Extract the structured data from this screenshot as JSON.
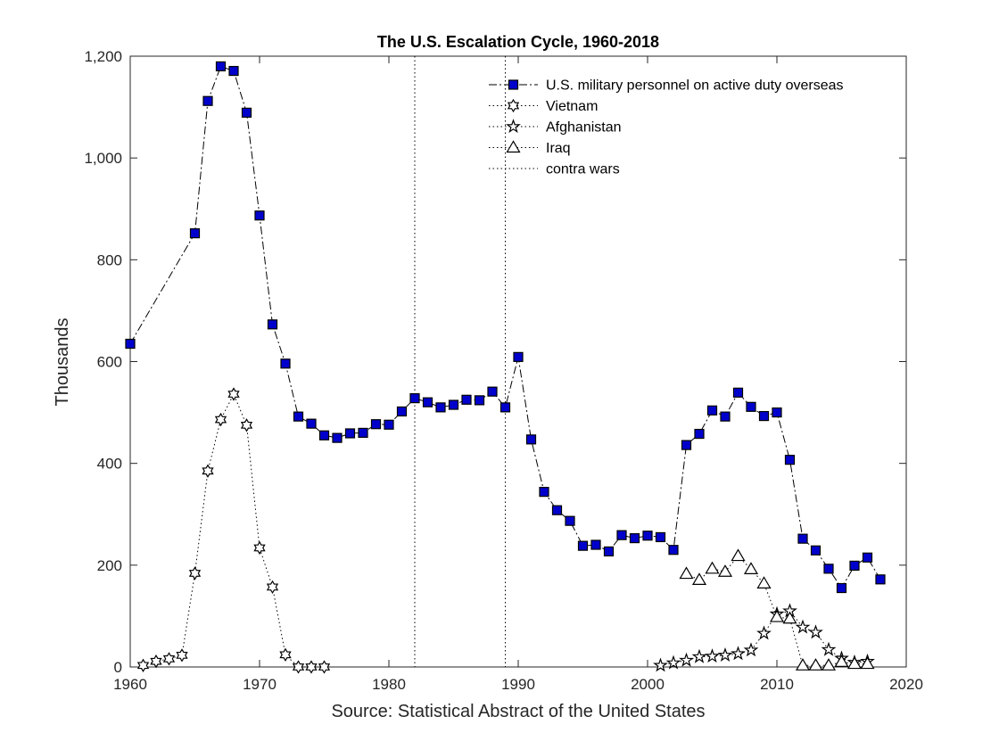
{
  "chart_data": {
    "type": "line",
    "title": "The U.S. Escalation Cycle, 1960-2018",
    "xlabel": "Source: Statistical Abstract of the United States",
    "ylabel": "Thousands",
    "xlim": [
      1960,
      2020
    ],
    "ylim": [
      0,
      1200
    ],
    "xticks": [
      1960,
      1970,
      1980,
      1990,
      2000,
      2010,
      2020
    ],
    "yticks": [
      0,
      200,
      400,
      600,
      800,
      1000,
      1200
    ],
    "ytick_labels": [
      "0",
      "200",
      "400",
      "600",
      "800",
      "1,000",
      "1,200"
    ],
    "grid": false,
    "legend_position": "top-right",
    "series": [
      {
        "name": "U.S. military personnel on active duty overseas",
        "marker": "square",
        "line": "dashdot",
        "color": "#0000cc",
        "x": [
          1960,
          1965,
          1966,
          1967,
          1968,
          1969,
          1970,
          1971,
          1972,
          1973,
          1974,
          1975,
          1976,
          1977,
          1978,
          1979,
          1980,
          1981,
          1982,
          1983,
          1984,
          1985,
          1986,
          1987,
          1988,
          1989,
          1990,
          1991,
          1992,
          1993,
          1994,
          1995,
          1996,
          1997,
          1998,
          1999,
          2000,
          2001,
          2002,
          2003,
          2004,
          2005,
          2006,
          2007,
          2008,
          2009,
          2010,
          2011,
          2012,
          2013,
          2014,
          2015,
          2016,
          2017,
          2018
        ],
        "values": [
          635,
          852,
          1112,
          1180,
          1171,
          1089,
          887,
          673,
          596,
          492,
          478,
          455,
          450,
          459,
          460,
          477,
          476,
          502,
          528,
          520,
          510,
          515,
          525,
          524,
          541,
          510,
          609,
          447,
          344,
          308,
          287,
          238,
          240,
          227,
          259,
          253,
          258,
          255,
          230,
          436,
          458,
          504,
          492,
          539,
          511,
          493,
          500,
          407,
          252,
          229,
          193,
          155,
          199,
          215,
          172
        ]
      },
      {
        "name": "Vietnam",
        "marker": "hexagram",
        "line": "dotted",
        "color": "#000000",
        "x": [
          1961,
          1962,
          1963,
          1964,
          1965,
          1966,
          1967,
          1968,
          1969,
          1970,
          1971,
          1972,
          1973,
          1974,
          1975
        ],
        "values": [
          3,
          11,
          16,
          23,
          184,
          385,
          486,
          536,
          475,
          234,
          157,
          24,
          0,
          0,
          0
        ]
      },
      {
        "name": "Afghanistan",
        "marker": "pentagram",
        "line": "dotted",
        "color": "#000000",
        "x": [
          2001,
          2002,
          2003,
          2004,
          2005,
          2006,
          2007,
          2008,
          2009,
          2010,
          2011,
          2012,
          2013,
          2014,
          2015,
          2016,
          2017
        ],
        "values": [
          3,
          8,
          13,
          20,
          21,
          23,
          26,
          33,
          66,
          104,
          110,
          78,
          68,
          34,
          17,
          9,
          11
        ]
      },
      {
        "name": "Iraq",
        "marker": "triangle",
        "line": "dotted",
        "color": "#000000",
        "x": [
          2003,
          2004,
          2005,
          2006,
          2007,
          2008,
          2009,
          2010,
          2011,
          2012,
          2013,
          2014,
          2015,
          2016,
          2017
        ],
        "values": [
          183,
          171,
          193,
          187,
          218,
          192,
          164,
          98,
          95,
          3,
          3,
          3,
          10,
          6,
          6
        ]
      }
    ],
    "reference_lines": {
      "name": "contra wars",
      "x": [
        1982,
        1989
      ]
    }
  }
}
